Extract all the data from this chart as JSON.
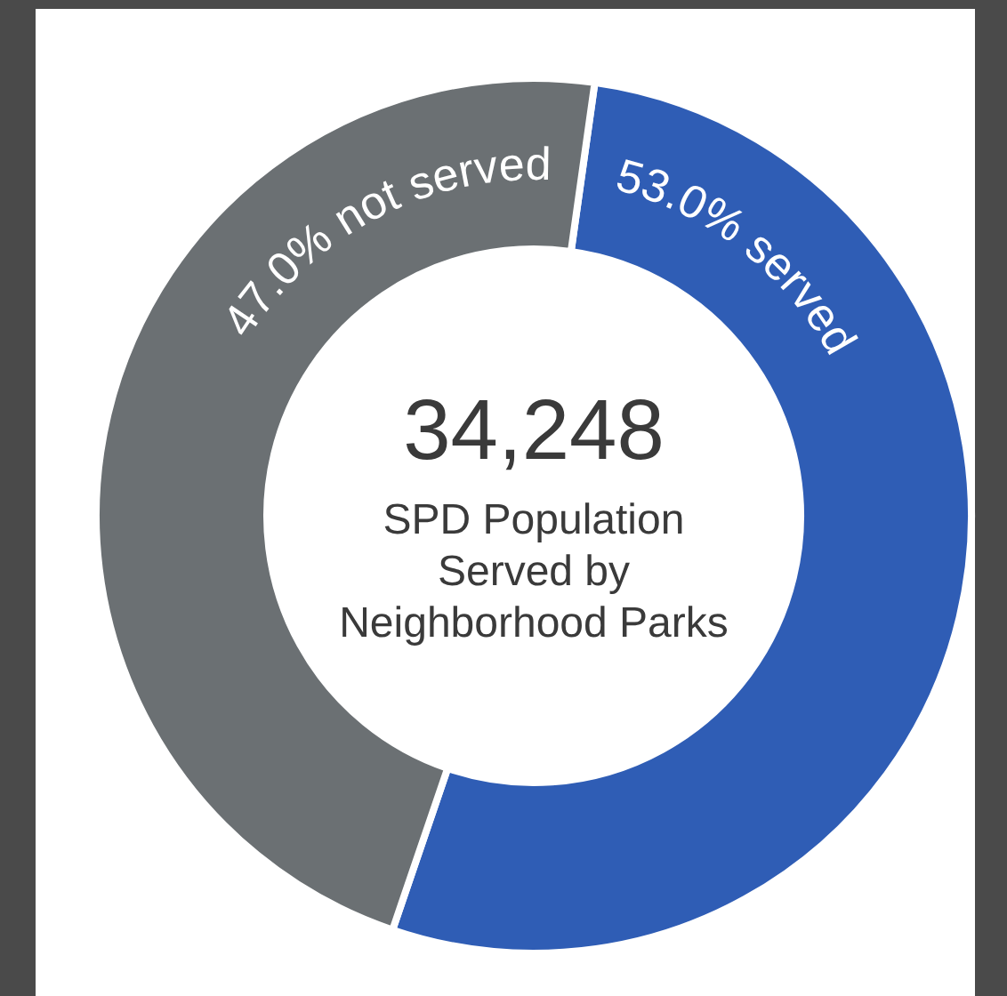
{
  "chart_data": {
    "type": "donut",
    "categories": [
      "served",
      "not served"
    ],
    "values": [
      53.0,
      47.0
    ],
    "colors": [
      "#2f5db5",
      "#6b7073"
    ],
    "value_labels": [
      "53.0%",
      "47.0%"
    ],
    "annotations": [
      "34,248",
      "SPD Population Served by Neighborhood Parks"
    ]
  }
}
